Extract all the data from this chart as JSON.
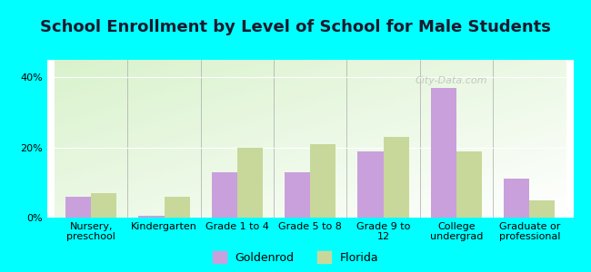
{
  "title": "School Enrollment by Level of School for Male Students",
  "categories": [
    "Nursery,\npreschool",
    "Kindergarten",
    "Grade 1 to 4",
    "Grade 5 to 8",
    "Grade 9 to\n12",
    "College\nundergrad",
    "Graduate or\nprofessional"
  ],
  "goldenrod_values": [
    6,
    0.5,
    13,
    13,
    19,
    37,
    11
  ],
  "florida_values": [
    7,
    6,
    20,
    21,
    23,
    19,
    5
  ],
  "goldenrod_color": "#c9a0dc",
  "florida_color": "#c8d89a",
  "background_color": "#00ffff",
  "yticks": [
    0,
    20,
    40
  ],
  "ylabel_ticks": [
    "0%",
    "20%",
    "40%"
  ],
  "ylim": [
    0,
    45
  ],
  "title_fontsize": 13,
  "tick_fontsize": 8,
  "legend_fontsize": 9,
  "watermark": "City-Data.com",
  "bar_width": 0.35
}
